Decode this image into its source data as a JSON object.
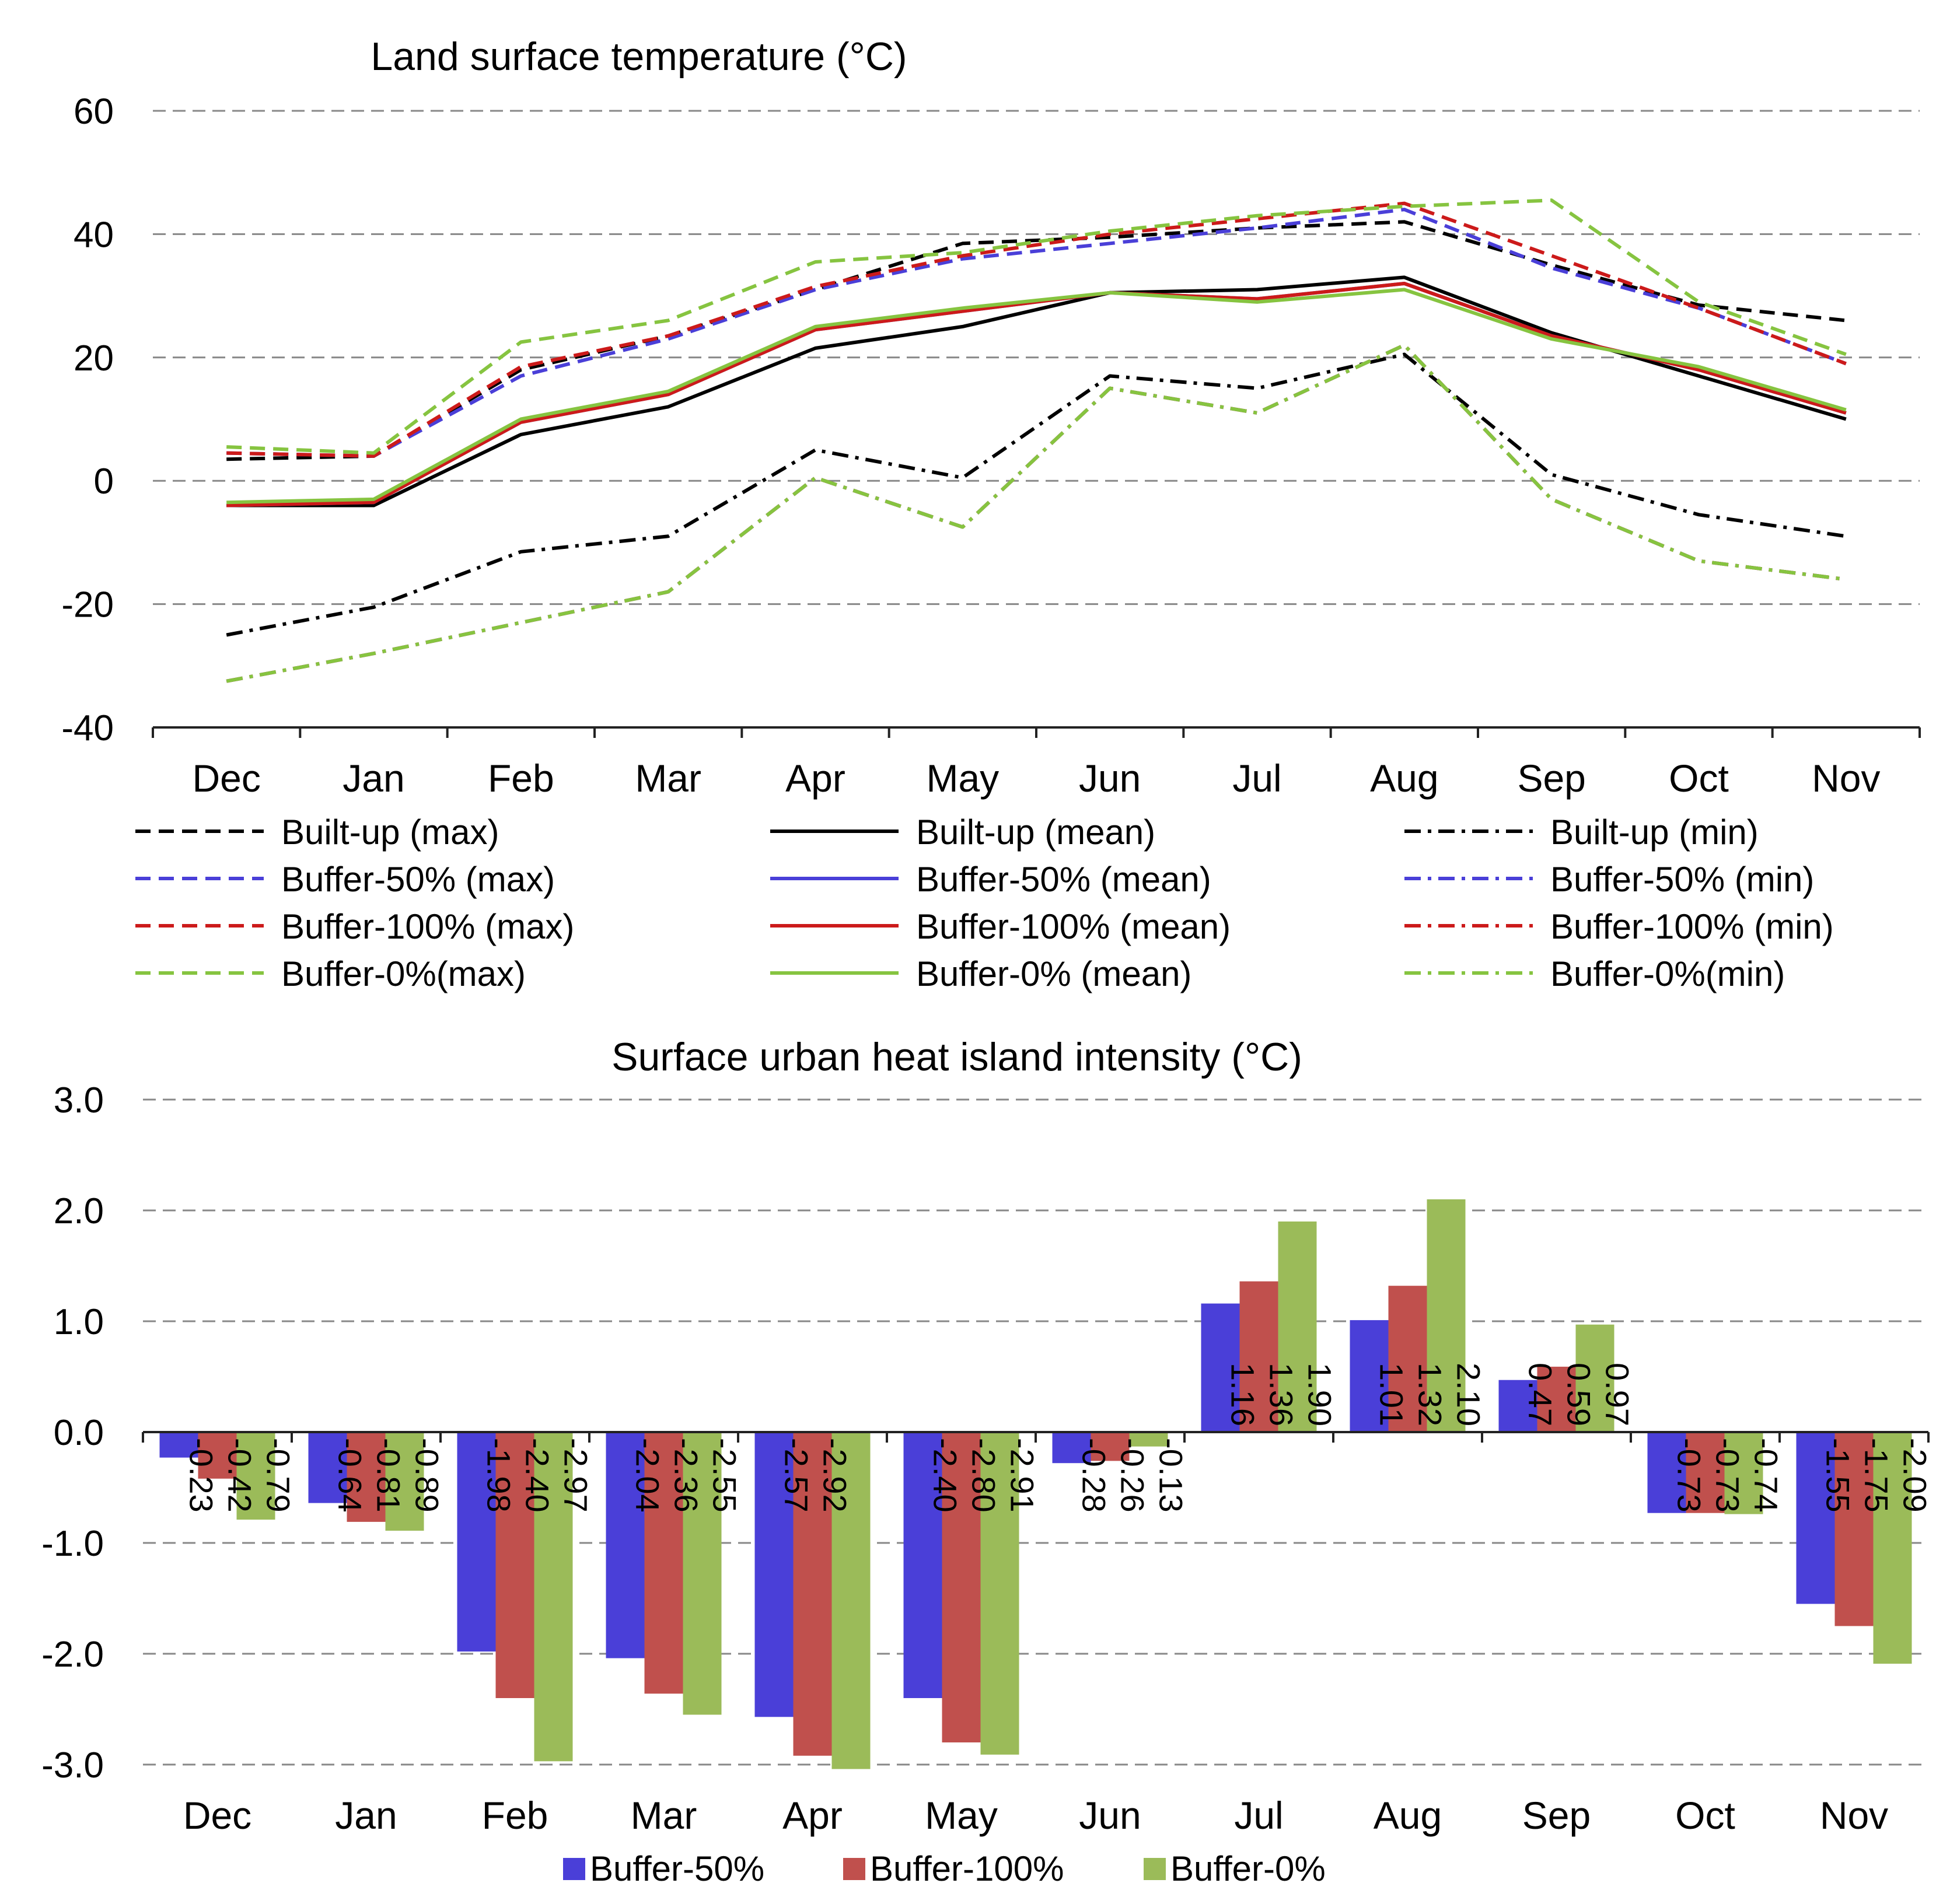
{
  "chart_data": [
    {
      "type": "line",
      "title": "Land surface temperature (°C)",
      "xlabel": "",
      "ylabel": "",
      "ylim": [
        -40,
        60
      ],
      "yticks": [
        -40,
        -20,
        0,
        20,
        40,
        60
      ],
      "grid": true,
      "legend_position": "bottom",
      "categories": [
        "Dec",
        "Jan",
        "Feb",
        "Mar",
        "Apr",
        "May",
        "Jun",
        "Jul",
        "Aug",
        "Sep",
        "Oct",
        "Nov"
      ],
      "series": [
        {
          "name": "Built-up (max)",
          "color": "#000000",
          "style": "dash",
          "values": [
            3.5,
            4,
            18,
            23.5,
            31,
            38.5,
            39.5,
            41,
            42,
            35,
            28.5,
            26
          ]
        },
        {
          "name": "Built-up (mean)",
          "color": "#000000",
          "style": "solid",
          "values": [
            -4,
            -4,
            7.5,
            12,
            21.5,
            25,
            30.5,
            31,
            33,
            24,
            17,
            10
          ]
        },
        {
          "name": "Built-up (min)",
          "color": "#000000",
          "style": "dashdot",
          "values": [
            -25,
            -20.5,
            -11.5,
            -9,
            5,
            0.5,
            17,
            15,
            20.5,
            1,
            -5.5,
            -9
          ]
        },
        {
          "name": "Buffer-50% (max)",
          "color": "#4a3fd8",
          "style": "dash",
          "values": [
            4.5,
            4,
            17,
            23,
            31,
            36,
            38.5,
            41,
            44,
            34.5,
            28,
            19
          ]
        },
        {
          "name": "Buffer-50% (mean)",
          "color": "#4a3fd8",
          "style": "solid",
          "values": [
            -4,
            -3.5,
            9.5,
            14,
            24.5,
            27.5,
            30.5,
            29.5,
            32,
            23.5,
            18,
            11
          ]
        },
        {
          "name": "Buffer-50% (min)",
          "color": "#4a3fd8",
          "style": "dashdot",
          "values": [
            -32.5,
            -28,
            -23,
            -18,
            0.5,
            -7.5,
            15,
            11,
            22,
            -3,
            -13,
            -16
          ]
        },
        {
          "name": "Buffer-100% (max)",
          "color": "#cc1a1a",
          "style": "dash",
          "values": [
            4.5,
            4,
            18.5,
            23.5,
            31.5,
            36.5,
            40,
            42.5,
            45,
            36.5,
            28,
            19
          ]
        },
        {
          "name": "Buffer-100% (mean)",
          "color": "#cc1a1a",
          "style": "solid",
          "values": [
            -4,
            -3.5,
            9.5,
            14,
            24.5,
            27.5,
            30.5,
            29.5,
            32,
            23.5,
            18,
            11
          ]
        },
        {
          "name": "Buffer-100% (min)",
          "color": "#cc1a1a",
          "style": "dashdot",
          "values": [
            -32.5,
            -28,
            -23,
            -18,
            0.5,
            -7.5,
            15,
            11,
            22,
            -3,
            -13,
            -16
          ]
        },
        {
          "name": "Buffer-0%(max)",
          "color": "#86c440",
          "style": "dash",
          "values": [
            5.5,
            4.5,
            22.5,
            26,
            35.5,
            37,
            40.5,
            43,
            44.5,
            45.5,
            29,
            20.5
          ]
        },
        {
          "name": "Buffer-0% (mean)",
          "color": "#86c440",
          "style": "solid",
          "values": [
            -3.5,
            -3,
            10,
            14.5,
            25,
            28,
            30.5,
            29,
            31,
            23,
            18.5,
            11.5
          ]
        },
        {
          "name": "Buffer-0%(min)",
          "color": "#86c440",
          "style": "dashdot",
          "values": [
            -32.5,
            -28,
            -23,
            -18,
            0.5,
            -7.5,
            15,
            11,
            22,
            -3,
            -13,
            -16
          ]
        }
      ]
    },
    {
      "type": "bar",
      "title": "Surface urban heat island intensity (°C)",
      "xlabel": "",
      "ylabel": "",
      "ylim": [
        -3.0,
        3.0
      ],
      "yticks": [
        -3.0,
        -2.0,
        -1.0,
        0.0,
        1.0,
        2.0,
        3.0
      ],
      "grid": true,
      "legend_position": "bottom",
      "categories": [
        "Dec",
        "Jan",
        "Feb",
        "Mar",
        "Apr",
        "May",
        "Jun",
        "Jul",
        "Aug",
        "Sep",
        "Oct",
        "Nov"
      ],
      "series": [
        {
          "name": "Buffer-50%",
          "color": "#4a3fd8",
          "values": [
            -0.23,
            -0.64,
            -1.98,
            -2.04,
            -2.57,
            -2.4,
            -0.28,
            1.16,
            1.01,
            0.47,
            -0.73,
            -1.55
          ]
        },
        {
          "name": "Buffer-100%",
          "color": "#c0504d",
          "values": [
            -0.42,
            -0.81,
            -2.4,
            -2.36,
            -2.92,
            -2.8,
            -0.26,
            1.36,
            1.32,
            0.59,
            -0.73,
            -1.75
          ]
        },
        {
          "name": "Buffer-0%",
          "color": "#9bbb59",
          "values": [
            -0.79,
            -0.89,
            -2.97,
            -2.55,
            -3.04,
            -2.91,
            -0.13,
            1.9,
            2.1,
            0.97,
            -0.74,
            -2.09
          ]
        }
      ],
      "data_labels": [
        [
          "-0.23",
          "-0.64",
          "-1.98",
          "-2.04",
          "-2.57",
          "-2.40",
          "-0.28",
          "1.16",
          "1.01",
          "0.47",
          "-0.73",
          "-1.55"
        ],
        [
          "-0.42",
          "-0.81",
          "-2.40",
          "-2.36",
          "-2.92",
          "-2.80",
          "-0.26",
          "1.36",
          "1.32",
          "0.59",
          "-0.73",
          "-1.75"
        ],
        [
          "-0.79",
          "-0.89",
          "-2.97",
          "-2.55",
          "",
          "-2.91",
          "-0.13",
          "1.90",
          "2.10",
          "0.97",
          "-0.74",
          "-2.09"
        ]
      ],
      "ytick_labels": [
        "-3.0",
        "-2.0",
        "-1.0",
        "0.0",
        "1.0",
        "2.0",
        "3.0"
      ]
    }
  ]
}
